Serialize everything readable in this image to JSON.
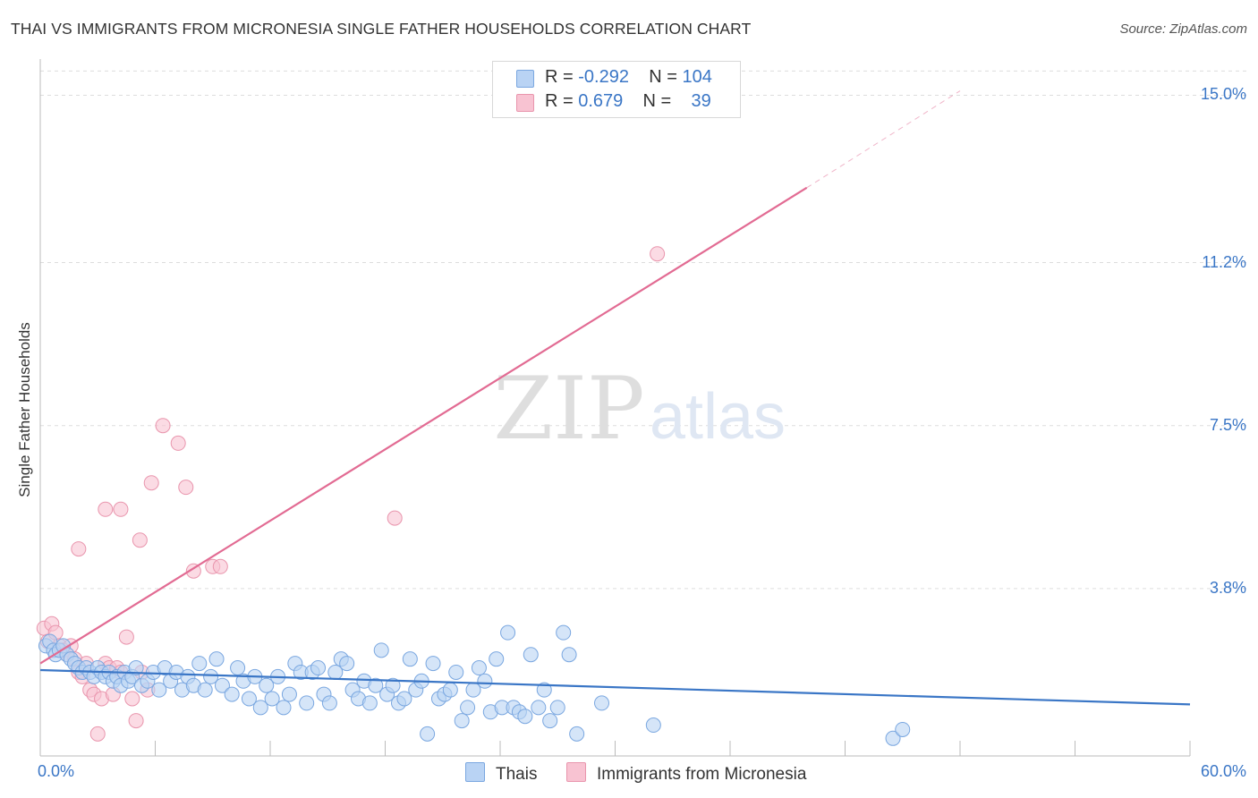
{
  "title": "THAI VS IMMIGRANTS FROM MICRONESIA SINGLE FATHER HOUSEHOLDS CORRELATION CHART",
  "source": "Source: ZipAtlas.com",
  "watermark": {
    "zip": "ZIP",
    "atlas": "atlas"
  },
  "legend": {
    "series1": {
      "r_label": "R = ",
      "r_value": "-0.292",
      "n_label": "N = ",
      "n_value": "104"
    },
    "series2": {
      "r_label": "R = ",
      "r_value": "0.679",
      "n_label": "N = ",
      "n_value": "39"
    }
  },
  "colors": {
    "thai_fill": "#b9d3f4",
    "thai_stroke": "#7aa7e0",
    "thai_line": "#3a76c6",
    "micro_fill": "#f8c3d2",
    "micro_stroke": "#e995ad",
    "micro_line": "#e26b93",
    "axis_text": "#3a76c6",
    "grid": "#dddddd"
  },
  "chart_data": {
    "type": "scatter",
    "title": "THAI VS IMMIGRANTS FROM MICRONESIA SINGLE FATHER HOUSEHOLDS CORRELATION CHART",
    "xlabel": "",
    "ylabel": "Single Father Households",
    "xlim": [
      0,
      60
    ],
    "ylim": [
      0,
      15.7
    ],
    "x_tick_labels": [
      "0.0%",
      "60.0%"
    ],
    "y_ticks": [
      3.8,
      7.5,
      11.2,
      15.0
    ],
    "y_tick_labels": [
      "3.8%",
      "7.5%",
      "11.2%",
      "15.0%"
    ],
    "grid": true,
    "legend_position": "top-center",
    "series": [
      {
        "name": "Thais",
        "color": "#b9d3f4",
        "r": -0.292,
        "n": 104,
        "trend": {
          "x": [
            0,
            60
          ],
          "y": [
            1.95,
            1.17
          ]
        },
        "points": [
          [
            0.3,
            2.5
          ],
          [
            0.5,
            2.6
          ],
          [
            0.7,
            2.4
          ],
          [
            0.8,
            2.3
          ],
          [
            1.0,
            2.4
          ],
          [
            1.2,
            2.5
          ],
          [
            1.4,
            2.3
          ],
          [
            1.6,
            2.2
          ],
          [
            1.8,
            2.1
          ],
          [
            2.0,
            2.0
          ],
          [
            2.2,
            1.9
          ],
          [
            2.4,
            2.0
          ],
          [
            2.6,
            1.9
          ],
          [
            2.8,
            1.8
          ],
          [
            3.0,
            2.0
          ],
          [
            3.2,
            1.9
          ],
          [
            3.4,
            1.8
          ],
          [
            3.6,
            1.9
          ],
          [
            3.8,
            1.7
          ],
          [
            4.0,
            1.8
          ],
          [
            4.2,
            1.6
          ],
          [
            4.4,
            1.9
          ],
          [
            4.6,
            1.7
          ],
          [
            4.8,
            1.8
          ],
          [
            5.0,
            2.0
          ],
          [
            5.3,
            1.6
          ],
          [
            5.6,
            1.7
          ],
          [
            5.9,
            1.9
          ],
          [
            6.2,
            1.5
          ],
          [
            6.5,
            2.0
          ],
          [
            6.8,
            1.7
          ],
          [
            7.1,
            1.9
          ],
          [
            7.4,
            1.5
          ],
          [
            7.7,
            1.8
          ],
          [
            8.0,
            1.6
          ],
          [
            8.3,
            2.1
          ],
          [
            8.6,
            1.5
          ],
          [
            8.9,
            1.8
          ],
          [
            9.2,
            2.2
          ],
          [
            9.5,
            1.6
          ],
          [
            10.0,
            1.4
          ],
          [
            10.3,
            2.0
          ],
          [
            10.6,
            1.7
          ],
          [
            10.9,
            1.3
          ],
          [
            11.2,
            1.8
          ],
          [
            11.5,
            1.1
          ],
          [
            11.8,
            1.6
          ],
          [
            12.1,
            1.3
          ],
          [
            12.4,
            1.8
          ],
          [
            12.7,
            1.1
          ],
          [
            13.0,
            1.4
          ],
          [
            13.3,
            2.1
          ],
          [
            13.6,
            1.9
          ],
          [
            13.9,
            1.2
          ],
          [
            14.2,
            1.9
          ],
          [
            14.5,
            2.0
          ],
          [
            14.8,
            1.4
          ],
          [
            15.1,
            1.2
          ],
          [
            15.4,
            1.9
          ],
          [
            15.7,
            2.2
          ],
          [
            16.0,
            2.1
          ],
          [
            16.3,
            1.5
          ],
          [
            16.6,
            1.3
          ],
          [
            16.9,
            1.7
          ],
          [
            17.2,
            1.2
          ],
          [
            17.5,
            1.6
          ],
          [
            17.8,
            2.4
          ],
          [
            18.1,
            1.4
          ],
          [
            18.4,
            1.6
          ],
          [
            18.7,
            1.2
          ],
          [
            19.0,
            1.3
          ],
          [
            19.3,
            2.2
          ],
          [
            19.6,
            1.5
          ],
          [
            19.9,
            1.7
          ],
          [
            20.2,
            0.5
          ],
          [
            20.5,
            2.1
          ],
          [
            20.8,
            1.3
          ],
          [
            21.1,
            1.4
          ],
          [
            21.4,
            1.5
          ],
          [
            21.7,
            1.9
          ],
          [
            22.0,
            0.8
          ],
          [
            22.3,
            1.1
          ],
          [
            22.6,
            1.5
          ],
          [
            22.9,
            2.0
          ],
          [
            23.2,
            1.7
          ],
          [
            23.5,
            1.0
          ],
          [
            23.8,
            2.2
          ],
          [
            24.1,
            1.1
          ],
          [
            24.4,
            2.8
          ],
          [
            24.7,
            1.1
          ],
          [
            25.0,
            1.0
          ],
          [
            25.3,
            0.9
          ],
          [
            25.6,
            2.3
          ],
          [
            26.0,
            1.1
          ],
          [
            26.3,
            1.5
          ],
          [
            26.6,
            0.8
          ],
          [
            27.0,
            1.1
          ],
          [
            27.3,
            2.8
          ],
          [
            27.6,
            2.3
          ],
          [
            28.0,
            0.5
          ],
          [
            29.3,
            1.2
          ],
          [
            32.0,
            0.7
          ],
          [
            44.5,
            0.4
          ],
          [
            45.0,
            0.6
          ]
        ]
      },
      {
        "name": "Immigrants from Micronesia",
        "color": "#f8c3d2",
        "r": 0.679,
        "n": 39,
        "trend": {
          "x": [
            0,
            40
          ],
          "y": [
            2.1,
            12.9
          ]
        },
        "trend_extrapolated": {
          "x": [
            40,
            48
          ],
          "y": [
            12.9,
            15.1
          ]
        },
        "points": [
          [
            0.2,
            2.9
          ],
          [
            0.4,
            2.6
          ],
          [
            0.6,
            3.0
          ],
          [
            0.8,
            2.8
          ],
          [
            1.0,
            2.5
          ],
          [
            1.2,
            2.4
          ],
          [
            1.4,
            2.3
          ],
          [
            1.6,
            2.5
          ],
          [
            1.8,
            2.2
          ],
          [
            2.0,
            1.9
          ],
          [
            2.2,
            1.8
          ],
          [
            2.4,
            2.1
          ],
          [
            2.6,
            1.5
          ],
          [
            2.8,
            1.4
          ],
          [
            3.0,
            0.5
          ],
          [
            3.2,
            1.3
          ],
          [
            3.4,
            2.1
          ],
          [
            3.6,
            2.0
          ],
          [
            3.8,
            1.4
          ],
          [
            4.0,
            2.0
          ],
          [
            4.2,
            1.9
          ],
          [
            4.5,
            2.7
          ],
          [
            4.8,
            1.3
          ],
          [
            5.0,
            0.8
          ],
          [
            5.3,
            1.9
          ],
          [
            5.6,
            1.5
          ],
          [
            2.0,
            4.7
          ],
          [
            3.4,
            5.6
          ],
          [
            4.2,
            5.6
          ],
          [
            5.2,
            4.9
          ],
          [
            5.8,
            6.2
          ],
          [
            6.4,
            7.5
          ],
          [
            7.2,
            7.1
          ],
          [
            7.6,
            6.1
          ],
          [
            8.0,
            4.2
          ],
          [
            9.0,
            4.3
          ],
          [
            9.4,
            4.3
          ],
          [
            18.5,
            5.4
          ],
          [
            32.2,
            11.4
          ]
        ]
      }
    ]
  },
  "bottom_legend": {
    "series1": "Thais",
    "series2": "Immigrants from Micronesia"
  },
  "axis": {
    "x_min_label": "0.0%",
    "x_max_label": "60.0%"
  }
}
